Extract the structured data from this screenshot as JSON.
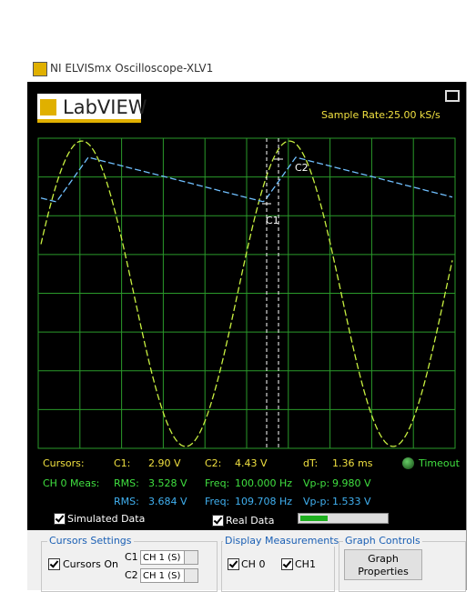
{
  "window": {
    "title": "NI ELVISmx Oscilloscope-XLV1"
  },
  "logo": {
    "text": "LabVIEW"
  },
  "sample_rate": {
    "label": "Sample Rate:",
    "value": "25.00 kS/s"
  },
  "cursors": [
    "C1",
    "C2"
  ],
  "measurements": [
    {
      "label": "Cursors:",
      "items": [
        {
          "name": "C1:",
          "value": "2.90 V"
        },
        {
          "name": "C2:",
          "value": "4.43 V"
        },
        {
          "name": "dT:",
          "value": "1.36 ms"
        }
      ]
    },
    {
      "label": "CH 0 Meas:",
      "items": [
        {
          "name": "RMS:",
          "value": "3.528 V"
        },
        {
          "name": "Freq:",
          "value": "100.000 Hz"
        },
        {
          "name": "Vp-p:",
          "value": "9.980 V"
        }
      ]
    },
    {
      "items": [
        {
          "name": "RMS:",
          "value": "3.684 V"
        },
        {
          "name": "Freq:",
          "value": "109.708 Hz"
        },
        {
          "name": "Vp-p:",
          "value": "1.533 V"
        }
      ]
    }
  ],
  "status": "Timeout",
  "options": [
    {
      "label": "Simulated Data",
      "checked": true
    },
    {
      "label": "Real Data",
      "checked": true
    }
  ],
  "cursor_settings": {
    "title": "Cursors Settings",
    "enable": {
      "label": "Cursors On",
      "checked": true
    },
    "rows": [
      {
        "label": "C1",
        "value": "CH 1 (S)"
      },
      {
        "label": "C2",
        "value": "CH 1 (S)"
      }
    ]
  },
  "display_measurements": {
    "title": "Display Measurements",
    "channels": [
      {
        "label": "CH 0",
        "checked": true
      },
      {
        "label": "CH1",
        "checked": true
      }
    ]
  },
  "graph_controls": {
    "title": "Graph Controls",
    "button": [
      "Graph",
      "Properties"
    ]
  }
}
